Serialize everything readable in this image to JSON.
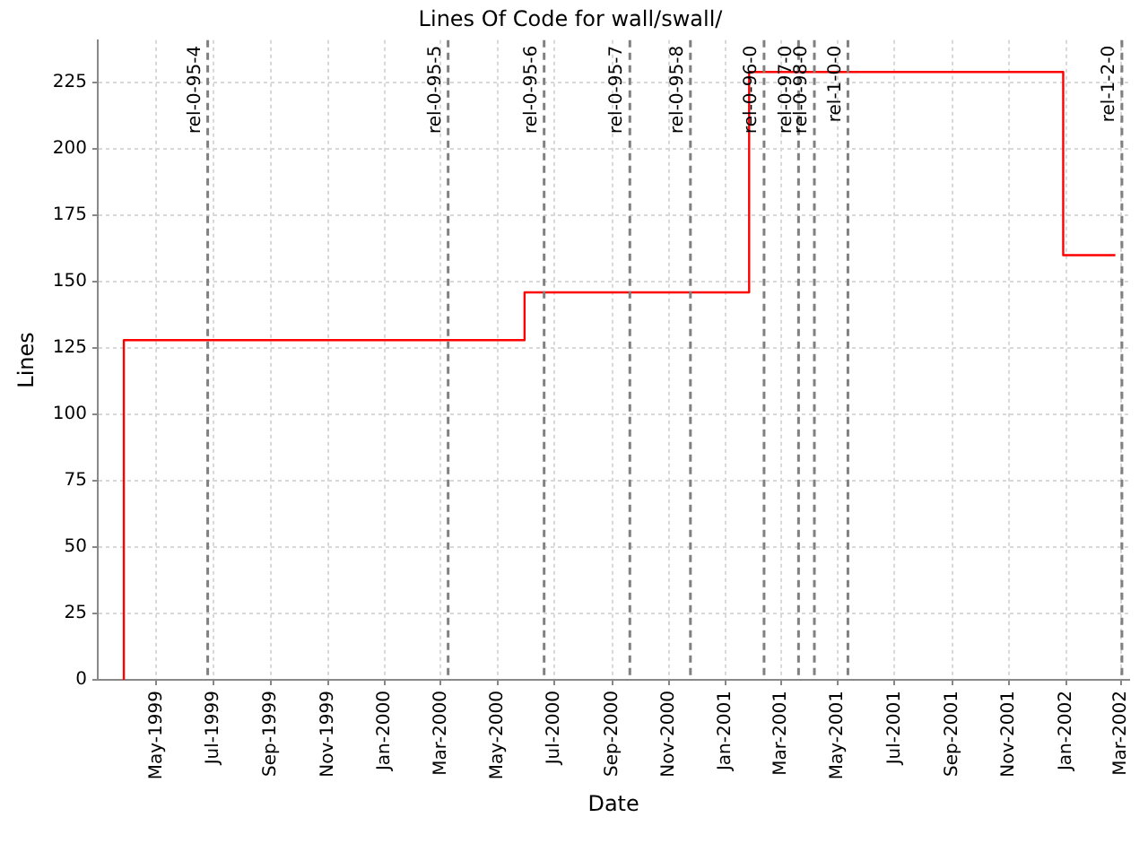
{
  "chart_data": {
    "type": "step",
    "title": "Lines Of Code for wall/swall/",
    "xlabel": "Date",
    "ylabel": "Lines",
    "series": [
      {
        "color": "#ff0000",
        "x": [
          "1999-03-27",
          "1999-03-27",
          "2000-05-30",
          "2001-01-26",
          "2001-12-29",
          "2002-02-23"
        ],
        "values": [
          0,
          128,
          146,
          229,
          160,
          160
        ]
      }
    ],
    "xlim": [
      "1999-02-27",
      "2002-03-10"
    ],
    "xticks": [
      {
        "value": "1999-05",
        "label": "May-1999"
      },
      {
        "value": "1999-07",
        "label": "Jul-1999"
      },
      {
        "value": "1999-09",
        "label": "Sep-1999"
      },
      {
        "value": "1999-11",
        "label": "Nov-1999"
      },
      {
        "value": "2000-01",
        "label": "Jan-2000"
      },
      {
        "value": "2000-03",
        "label": "Mar-2000"
      },
      {
        "value": "2000-05",
        "label": "May-2000"
      },
      {
        "value": "2000-07",
        "label": "Jul-2000"
      },
      {
        "value": "2000-09",
        "label": "Sep-2000"
      },
      {
        "value": "2000-11",
        "label": "Nov-2000"
      },
      {
        "value": "2001-01",
        "label": "Jan-2001"
      },
      {
        "value": "2001-03",
        "label": "Mar-2001"
      },
      {
        "value": "2001-05",
        "label": "May-2001"
      },
      {
        "value": "2001-07",
        "label": "Jul-2001"
      },
      {
        "value": "2001-09",
        "label": "Sep-2001"
      },
      {
        "value": "2001-11",
        "label": "Nov-2001"
      },
      {
        "value": "2002-01",
        "label": "Jan-2002"
      },
      {
        "value": "2002-03",
        "label": "Mar-2002"
      }
    ],
    "ylim": [
      0,
      241
    ],
    "yticks": [
      0,
      25,
      50,
      75,
      100,
      125,
      150,
      175,
      200,
      225
    ],
    "ref_lines": [
      {
        "axis": "x",
        "value": "1999-06-25",
        "label": "rel-0-95-4",
        "color": "#808080",
        "line_style": "dashed"
      },
      {
        "axis": "x",
        "value": "2000-03-09",
        "label": "rel-0-95-5",
        "color": "#808080",
        "line_style": "dashed"
      },
      {
        "axis": "x",
        "value": "2000-06-20",
        "label": "rel-0-95-6",
        "color": "#808080",
        "line_style": "dashed"
      },
      {
        "axis": "x",
        "value": "2000-09-20",
        "label": "rel-0-95-7",
        "color": "#808080",
        "line_style": "dashed"
      },
      {
        "axis": "x",
        "value": "2000-11-24",
        "label": "rel-0-95-8",
        "color": "#808080",
        "line_style": "dashed"
      },
      {
        "axis": "x",
        "value": "2001-02-11",
        "label": "rel-0-96-0",
        "color": "#808080",
        "line_style": "dashed"
      },
      {
        "axis": "x",
        "value": "2001-03-20",
        "label": "rel-0-97-0",
        "color": "#808080",
        "line_style": "dashed"
      },
      {
        "axis": "x",
        "value": "2001-04-06",
        "label": "rel-0-98-0",
        "color": "#808080",
        "line_style": "dashed"
      },
      {
        "axis": "x",
        "value": "2001-05-12",
        "label": "rel-1-0-0",
        "color": "#808080",
        "line_style": "dashed"
      },
      {
        "axis": "x",
        "value": "2002-03-02",
        "label": "rel-1-2-0",
        "color": "#808080",
        "line_style": "dashed"
      }
    ],
    "grid": true,
    "legend": false,
    "marker": "none",
    "line_style": "solid"
  }
}
